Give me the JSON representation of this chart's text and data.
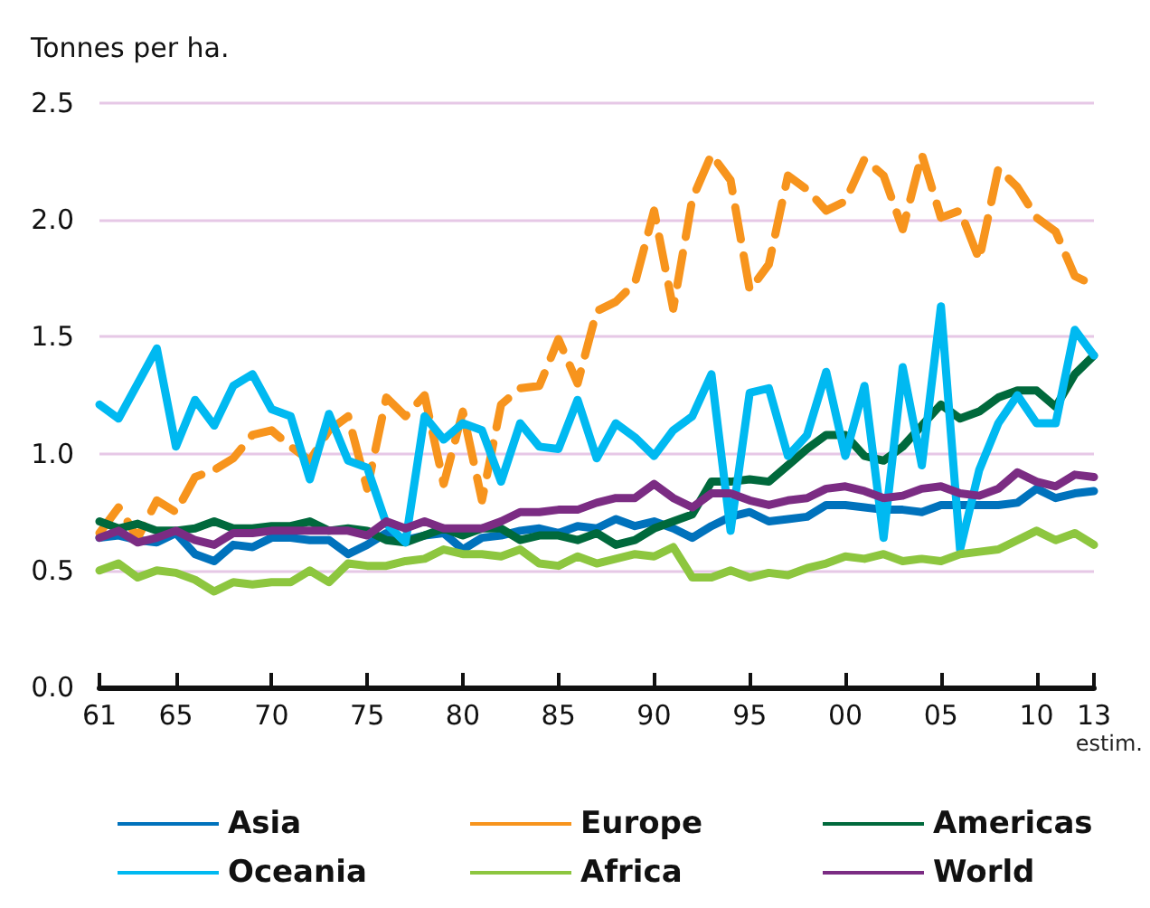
{
  "chart_data": {
    "type": "line",
    "ylabel": "Tonnes per ha.",
    "annotations": [
      "estim."
    ],
    "x": [
      1961,
      1962,
      1963,
      1964,
      1965,
      1966,
      1967,
      1968,
      1969,
      1970,
      1971,
      1972,
      1973,
      1974,
      1975,
      1976,
      1977,
      1978,
      1979,
      1980,
      1981,
      1982,
      1983,
      1984,
      1985,
      1986,
      1987,
      1988,
      1989,
      1990,
      1991,
      1992,
      1993,
      1994,
      1995,
      1996,
      1997,
      1998,
      1999,
      2000,
      2001,
      2002,
      2003,
      2004,
      2005,
      2006,
      2007,
      2008,
      2009,
      2010,
      2011,
      2012,
      2013
    ],
    "series": [
      {
        "name": "Asia",
        "color": "#0072bc",
        "values": [
          0.64,
          0.65,
          0.63,
          0.62,
          0.66,
          0.57,
          0.54,
          0.61,
          0.6,
          0.64,
          0.64,
          0.63,
          0.63,
          0.57,
          0.61,
          0.66,
          0.63,
          0.65,
          0.66,
          0.59,
          0.64,
          0.65,
          0.67,
          0.68,
          0.66,
          0.69,
          0.68,
          0.72,
          0.69,
          0.71,
          0.68,
          0.64,
          0.69,
          0.73,
          0.75,
          0.71,
          0.72,
          0.73,
          0.78,
          0.78,
          0.77,
          0.76,
          0.76,
          0.75,
          0.78,
          0.78,
          0.78,
          0.78,
          0.79,
          0.85,
          0.81,
          0.83,
          0.84
        ]
      },
      {
        "name": "Europe",
        "color": "#f7941d",
        "line_style": "dashed",
        "values": [
          0.66,
          0.77,
          0.64,
          0.8,
          0.75,
          0.9,
          0.93,
          0.98,
          1.08,
          1.1,
          1.03,
          0.97,
          1.1,
          1.16,
          0.85,
          1.24,
          1.16,
          1.25,
          0.87,
          1.18,
          0.8,
          1.21,
          1.28,
          1.29,
          1.49,
          1.3,
          1.61,
          1.65,
          1.73,
          2.04,
          1.62,
          2.09,
          2.28,
          2.17,
          1.7,
          1.81,
          2.19,
          2.13,
          2.04,
          2.08,
          2.26,
          2.19,
          1.96,
          2.28,
          2.01,
          2.04,
          1.83,
          2.22,
          2.14,
          2.01,
          1.95,
          1.76,
          1.72
        ]
      },
      {
        "name": "Americas",
        "color": "#00693c",
        "values": [
          0.71,
          0.68,
          0.7,
          0.67,
          0.67,
          0.68,
          0.71,
          0.68,
          0.68,
          0.69,
          0.69,
          0.71,
          0.67,
          0.68,
          0.67,
          0.63,
          0.62,
          0.65,
          0.68,
          0.65,
          0.68,
          0.68,
          0.63,
          0.65,
          0.65,
          0.63,
          0.66,
          0.61,
          0.63,
          0.68,
          0.71,
          0.74,
          0.88,
          0.88,
          0.89,
          0.88,
          0.95,
          1.02,
          1.08,
          1.08,
          0.99,
          0.97,
          1.03,
          1.12,
          1.21,
          1.15,
          1.18,
          1.24,
          1.27,
          1.27,
          1.2,
          1.34,
          1.42
        ]
      },
      {
        "name": "Oceania",
        "color": "#00b9f1",
        "values": [
          1.21,
          1.15,
          1.3,
          1.45,
          1.03,
          1.23,
          1.12,
          1.29,
          1.34,
          1.19,
          1.16,
          0.89,
          1.17,
          0.97,
          0.94,
          0.7,
          0.62,
          1.16,
          1.06,
          1.13,
          1.1,
          0.88,
          1.13,
          1.03,
          1.02,
          1.23,
          0.98,
          1.13,
          1.07,
          0.99,
          1.1,
          1.16,
          1.34,
          0.67,
          1.26,
          1.28,
          0.99,
          1.08,
          1.35,
          0.99,
          1.29,
          0.64,
          1.37,
          0.95,
          1.63,
          0.59,
          0.93,
          1.13,
          1.25,
          1.13,
          1.13,
          1.53,
          1.42
        ]
      },
      {
        "name": "Africa",
        "color": "#8dc63f",
        "values": [
          0.5,
          0.53,
          0.47,
          0.5,
          0.49,
          0.46,
          0.41,
          0.45,
          0.44,
          0.45,
          0.45,
          0.5,
          0.45,
          0.53,
          0.52,
          0.52,
          0.54,
          0.55,
          0.59,
          0.57,
          0.57,
          0.56,
          0.59,
          0.53,
          0.52,
          0.56,
          0.53,
          0.55,
          0.57,
          0.56,
          0.6,
          0.47,
          0.47,
          0.5,
          0.47,
          0.49,
          0.48,
          0.51,
          0.53,
          0.56,
          0.55,
          0.57,
          0.54,
          0.55,
          0.54,
          0.57,
          0.58,
          0.59,
          0.63,
          0.67,
          0.63,
          0.66,
          0.61
        ]
      },
      {
        "name": "World",
        "color": "#7b2c83",
        "values": [
          0.64,
          0.67,
          0.62,
          0.64,
          0.67,
          0.63,
          0.61,
          0.66,
          0.66,
          0.67,
          0.67,
          0.67,
          0.67,
          0.67,
          0.65,
          0.71,
          0.68,
          0.71,
          0.68,
          0.68,
          0.68,
          0.71,
          0.75,
          0.75,
          0.76,
          0.76,
          0.79,
          0.81,
          0.81,
          0.87,
          0.81,
          0.77,
          0.83,
          0.83,
          0.8,
          0.78,
          0.8,
          0.81,
          0.85,
          0.86,
          0.84,
          0.81,
          0.82,
          0.85,
          0.86,
          0.83,
          0.82,
          0.85,
          0.92,
          0.88,
          0.86,
          0.91,
          0.9
        ]
      }
    ],
    "xlim": [
      1961,
      2013
    ],
    "xticks": [
      {
        "value": 1961,
        "label": "61"
      },
      {
        "value": 1965,
        "label": "65"
      },
      {
        "value": 1970,
        "label": "70"
      },
      {
        "value": 1975,
        "label": "75"
      },
      {
        "value": 1980,
        "label": "80"
      },
      {
        "value": 1985,
        "label": "85"
      },
      {
        "value": 1990,
        "label": "90"
      },
      {
        "value": 1995,
        "label": "95"
      },
      {
        "value": 2000,
        "label": "00"
      },
      {
        "value": 2005,
        "label": "05"
      },
      {
        "value": 2010,
        "label": "10"
      },
      {
        "value": 2013,
        "label": "13"
      }
    ],
    "ylim": [
      0,
      2.5
    ],
    "yticks": [
      {
        "value": 0,
        "label": "0.0"
      },
      {
        "value": 0.5,
        "label": "0.5"
      },
      {
        "value": 1,
        "label": "1.0"
      },
      {
        "value": 1.5,
        "label": "1.5"
      },
      {
        "value": 2,
        "label": "2.0"
      },
      {
        "value": 2.5,
        "label": "2.5"
      }
    ],
    "grid": "y",
    "legend": "bottom",
    "marker": "none",
    "line_style": "solid"
  }
}
